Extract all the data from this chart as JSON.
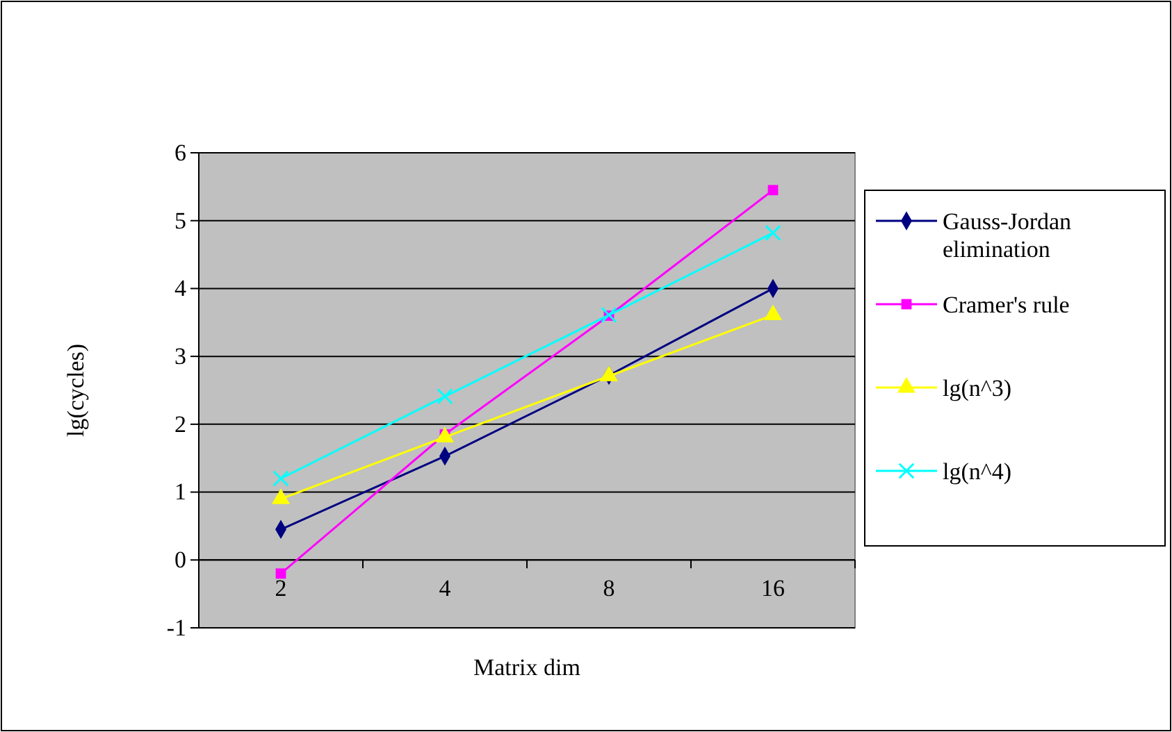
{
  "chart_data": {
    "type": "line",
    "xlabel": "Matrix dim",
    "ylabel": "lg(cycles)",
    "categories": [
      "2",
      "4",
      "8",
      "16"
    ],
    "series": [
      {
        "name": "Gauss-Jordan elimination",
        "color": "#000080",
        "marker": "diamond",
        "values": [
          0.45,
          1.53,
          2.72,
          4.0
        ]
      },
      {
        "name": "Cramer's rule",
        "color": "#ff00ff",
        "marker": "square",
        "values": [
          -0.2,
          1.85,
          3.6,
          5.45
        ]
      },
      {
        "name": "lg(n^3)",
        "color": "#ffff00",
        "marker": "triangle",
        "values": [
          0.9,
          1.81,
          2.71,
          3.61
        ]
      },
      {
        "name": "lg(n^4)",
        "color": "#00ffff",
        "marker": "cross",
        "values": [
          1.2,
          2.41,
          3.61,
          4.82
        ]
      }
    ],
    "ylim": [
      -1,
      6
    ],
    "yticks": [
      -1,
      0,
      1,
      2,
      3,
      4,
      5,
      6
    ],
    "grid": "y",
    "legend": "right"
  }
}
